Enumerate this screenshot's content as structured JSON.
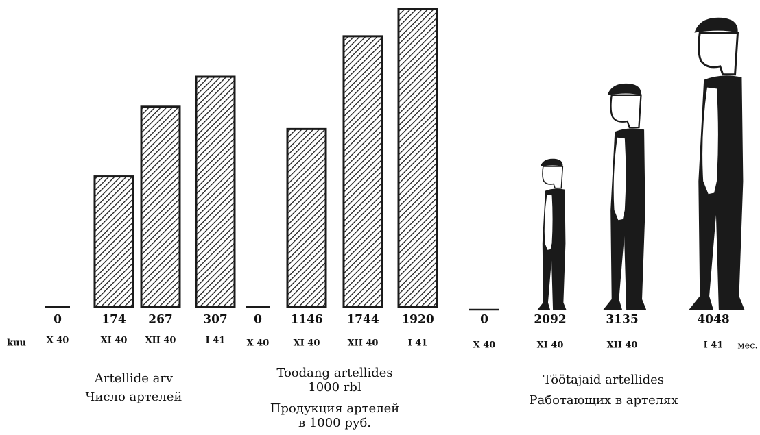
{
  "row_label": "kuu",
  "row_label_ru": "мес.",
  "chart_data": [
    {
      "type": "bar",
      "pattern": "hatch",
      "color": "#1a1a1a",
      "title_lines": [
        "Artellide arv",
        "Число артелей"
      ],
      "categories": [
        "X 40",
        "XI 40",
        "XII 40",
        "I 41"
      ],
      "values": [
        0,
        174,
        267,
        307
      ]
    },
    {
      "type": "bar",
      "pattern": "hatch",
      "color": "#1a1a1a",
      "title_lines": [
        "Toodang artellides",
        "1000 rbl",
        "Продукция артелей",
        "в 1000 руб."
      ],
      "categories": [
        "X 40",
        "XI 40",
        "XII 40",
        "I 41"
      ],
      "values": [
        0,
        1146,
        1744,
        1920
      ]
    },
    {
      "type": "pictogram",
      "color": "#1a1a1a",
      "title_lines": [
        "Töötajaid artellides",
        "Работающих в артелях"
      ],
      "categories": [
        "X 40",
        "XI 40",
        "XII 40",
        "I 41"
      ],
      "values": [
        0,
        2092,
        3135,
        4048
      ]
    }
  ]
}
